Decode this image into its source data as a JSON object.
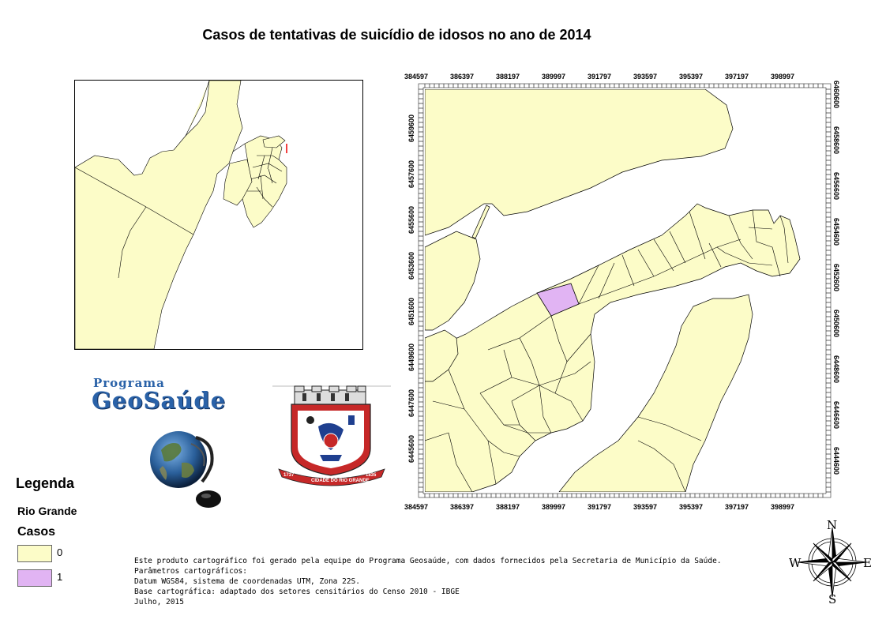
{
  "title": "Casos de tentativas de suicídio de idosos no ano de 2014",
  "grid": {
    "x_ticks": [
      "384597",
      "386397",
      "388197",
      "389997",
      "391797",
      "393597",
      "395397",
      "397197",
      "398997"
    ],
    "y_ticks_left": [
      "6459600",
      "6457600",
      "6455600",
      "6453600",
      "6451600",
      "6449600",
      "6447600",
      "6445600"
    ],
    "y_ticks_right": [
      "6460600",
      "6458600",
      "6456600",
      "6454600",
      "6452600",
      "6450600",
      "6448600",
      "6446600",
      "6444600"
    ]
  },
  "legend": {
    "title": "Legenda",
    "layer": "Rio Grande",
    "field": "Casos",
    "classes": [
      {
        "label": "0",
        "color": "#fcfcc8"
      },
      {
        "label": "1",
        "color": "#e1b4f3"
      }
    ]
  },
  "credits": [
    "Este produto cartográfico foi gerado pela equipe do Programa Geosaúde, com dados fornecidos pela Secretaria de Município da Saúde.",
    "Parâmetros cartográficos:",
    "Datum WGS84, sistema de coordenadas UTM, Zona 22S.",
    "Base cartográfica: adaptado dos setores censitários do Censo 2010 - IBGE",
    "Julho, 2015"
  ],
  "logos": {
    "program_small": "Programa",
    "program_big": "GeoSaúde",
    "crest_ribbon_left": "1737",
    "crest_ribbon_mid": "CIDADE DO RIO GRANDE",
    "crest_ribbon_right": "1835"
  },
  "compass": {
    "n": "N",
    "s": "S",
    "e": "E",
    "w": "W"
  },
  "colors": {
    "land": "#fcfcc8",
    "highlight": "#e1b4f3",
    "outline": "#000000",
    "globe_blue": "#2a62a8"
  }
}
